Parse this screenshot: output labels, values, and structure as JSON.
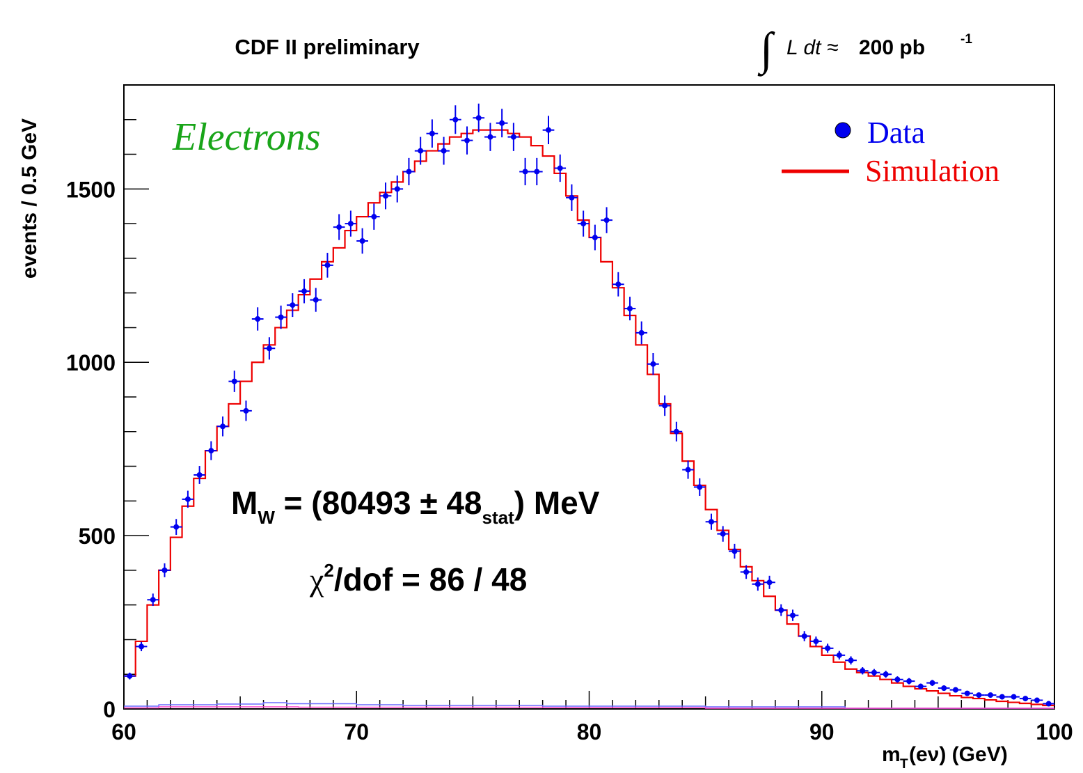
{
  "chart_data": {
    "type": "histogram",
    "header_left": "CDF II preliminary",
    "header_right": {
      "integral_symbol": "∫",
      "lumi_prefix": "L dt ≈",
      "lumi_value": "200 pb",
      "lumi_exponent": "-1"
    },
    "channel_label": "Electrons",
    "xlabel": {
      "main": "m",
      "sub": "T",
      "rest": "(eν) (GeV)"
    },
    "ylabel": "events / 0.5 GeV",
    "xlim": [
      60,
      100
    ],
    "ylim": [
      0,
      1800
    ],
    "x_major_ticks": [
      60,
      70,
      80,
      90,
      100
    ],
    "y_major_ticks": [
      0,
      500,
      1000,
      1500
    ],
    "x_tick_labels": [
      "60",
      "70",
      "80",
      "90",
      "100"
    ],
    "y_tick_labels": [
      "0",
      "500",
      "1000",
      "1500"
    ],
    "legend": {
      "placement": "top-right",
      "items": [
        {
          "label": "Data",
          "marker": "dot",
          "color": "#0000ee"
        },
        {
          "label": "Simulation",
          "marker": "line",
          "color": "#ee0000"
        }
      ]
    },
    "annotations": {
      "mass_pre": "M",
      "mass_sub": "W",
      "mass_mid": " = (80493 ± 48",
      "mass_stat": "stat",
      "mass_post": ") MeV",
      "chi2_sym": "χ",
      "chi2_exp": "2",
      "chi2_post": "/dof = 86 / 48"
    },
    "colors": {
      "data": "#0000ee",
      "simulation": "#ee0000",
      "channel_label": "#19a519",
      "background_1": "#6a6aff",
      "background_2": "#ff44cc"
    },
    "bin_width": 0.5,
    "simulation_bin_starts": [
      60,
      60.5,
      61,
      61.5,
      62,
      62.5,
      63,
      63.5,
      64,
      64.5,
      65,
      65.5,
      66,
      66.5,
      67,
      67.5,
      68,
      68.5,
      69,
      69.5,
      70,
      70.5,
      71,
      71.5,
      72,
      72.5,
      73,
      73.5,
      74,
      74.5,
      75,
      75.5,
      76,
      76.5,
      77,
      77.5,
      78,
      78.5,
      79,
      79.5,
      80,
      80.5,
      81,
      81.5,
      82,
      82.5,
      83,
      83.5,
      84,
      84.5,
      85,
      85.5,
      86,
      86.5,
      87,
      87.5,
      88,
      88.5,
      89,
      89.5,
      90,
      90.5,
      91,
      91.5,
      92,
      92.5,
      93,
      93.5,
      94,
      94.5,
      95,
      95.5,
      96,
      96.5,
      97,
      97.5,
      98,
      98.5,
      99,
      99.5
    ],
    "simulation_values": [
      95,
      195,
      300,
      400,
      495,
      585,
      665,
      745,
      815,
      880,
      945,
      1000,
      1050,
      1100,
      1150,
      1195,
      1240,
      1290,
      1330,
      1380,
      1420,
      1460,
      1490,
      1520,
      1550,
      1580,
      1610,
      1630,
      1650,
      1660,
      1670,
      1670,
      1670,
      1660,
      1650,
      1625,
      1595,
      1545,
      1480,
      1410,
      1360,
      1290,
      1215,
      1135,
      1050,
      965,
      880,
      795,
      715,
      645,
      575,
      515,
      460,
      410,
      370,
      325,
      285,
      245,
      210,
      180,
      155,
      135,
      115,
      105,
      95,
      85,
      75,
      65,
      58,
      52,
      45,
      38,
      33,
      30,
      26,
      22,
      19,
      16,
      13,
      10
    ],
    "data_x": [
      60.25,
      60.75,
      61.25,
      61.75,
      62.25,
      62.75,
      63.25,
      63.75,
      64.25,
      64.75,
      65.25,
      65.75,
      66.25,
      66.75,
      67.25,
      67.75,
      68.25,
      68.75,
      69.25,
      69.75,
      70.25,
      70.75,
      71.25,
      71.75,
      72.25,
      72.75,
      73.25,
      73.75,
      74.25,
      74.75,
      75.25,
      75.75,
      76.25,
      76.75,
      77.25,
      77.75,
      78.25,
      78.75,
      79.25,
      79.75,
      80.25,
      80.75,
      81.25,
      81.75,
      82.25,
      82.75,
      83.25,
      83.75,
      84.25,
      84.75,
      85.25,
      85.75,
      86.25,
      86.75,
      87.25,
      87.75,
      88.25,
      88.75,
      89.25,
      89.75,
      90.25,
      90.75,
      91.25,
      91.75,
      92.25,
      92.75,
      93.25,
      93.75,
      94.25,
      94.75,
      95.25,
      95.75,
      96.25,
      96.75,
      97.25,
      97.75,
      98.25,
      98.75,
      99.25,
      99.75
    ],
    "data_y": [
      95,
      180,
      315,
      400,
      525,
      605,
      675,
      745,
      815,
      945,
      860,
      1125,
      1040,
      1130,
      1165,
      1205,
      1180,
      1280,
      1390,
      1400,
      1350,
      1420,
      1480,
      1500,
      1550,
      1610,
      1660,
      1610,
      1700,
      1640,
      1705,
      1650,
      1690,
      1650,
      1550,
      1550,
      1670,
      1560,
      1475,
      1400,
      1360,
      1410,
      1225,
      1155,
      1085,
      995,
      875,
      800,
      690,
      640,
      540,
      505,
      455,
      395,
      360,
      365,
      285,
      270,
      210,
      195,
      175,
      155,
      140,
      110,
      105,
      100,
      85,
      80,
      65,
      75,
      60,
      55,
      45,
      40,
      40,
      35,
      35,
      30,
      25,
      15
    ],
    "background_1_bin_starts": [
      60,
      61.5,
      64,
      66,
      67,
      70,
      72,
      78,
      85,
      91
    ],
    "background_1_values": [
      8,
      12,
      14,
      18,
      15,
      12,
      10,
      8,
      6,
      2
    ],
    "background_2_bin_starts": [
      60,
      61.5,
      67.5,
      78,
      85
    ],
    "background_2_values": [
      3,
      6,
      5,
      4,
      2
    ]
  }
}
